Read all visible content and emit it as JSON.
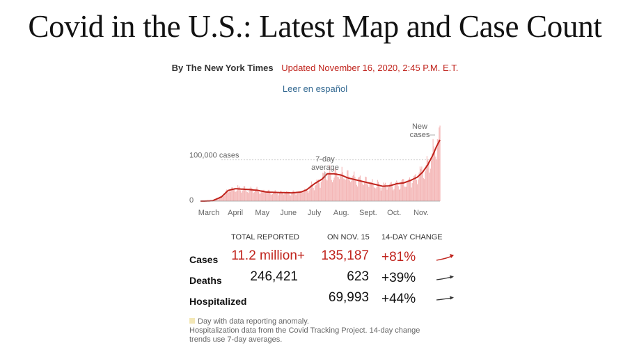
{
  "header": {
    "title": "Covid in the U.S.: Latest Map and Case Count",
    "byline": "By The New York Times",
    "updated": "Updated November 16, 2020, 2:45 P.M. E.T.",
    "language_link": "Leer en español"
  },
  "chart_data": {
    "type": "bar",
    "categories": [
      "March",
      "April",
      "May",
      "June",
      "July",
      "Aug.",
      "Sept.",
      "Oct.",
      "Nov."
    ],
    "ylim": [
      0,
      175000
    ],
    "gridline_label": "100,000 cases",
    "zero_label": "0",
    "annotations": {
      "average": "7-day average",
      "new_cases": "New cases"
    },
    "colors": {
      "bars": "#f4b6b6",
      "average_line": "#c0231c",
      "gridline": "#d0d0d0"
    },
    "series": [
      {
        "name": "New cases",
        "type": "bar"
      },
      {
        "name": "7-day average",
        "type": "line",
        "keypoints": [
          [
            0,
            0
          ],
          [
            6,
            100
          ],
          [
            14,
            1000
          ],
          [
            24,
            10000
          ],
          [
            32,
            26000
          ],
          [
            40,
            30000
          ],
          [
            48,
            29000
          ],
          [
            56,
            28000
          ],
          [
            66,
            26000
          ],
          [
            76,
            22000
          ],
          [
            86,
            21000
          ],
          [
            96,
            20500
          ],
          [
            106,
            20000
          ],
          [
            116,
            22000
          ],
          [
            122,
            27000
          ],
          [
            132,
            43000
          ],
          [
            140,
            53000
          ],
          [
            146,
            66000
          ],
          [
            154,
            66000
          ],
          [
            162,
            63000
          ],
          [
            170,
            56000
          ],
          [
            178,
            52000
          ],
          [
            186,
            48000
          ],
          [
            194,
            44000
          ],
          [
            202,
            40000
          ],
          [
            210,
            36000
          ],
          [
            218,
            37000
          ],
          [
            226,
            42000
          ],
          [
            234,
            44000
          ],
          [
            242,
            50000
          ],
          [
            250,
            58000
          ],
          [
            256,
            70000
          ],
          [
            262,
            88000
          ],
          [
            268,
            112000
          ],
          [
            272,
            132000
          ],
          [
            276,
            148000
          ]
        ]
      }
    ]
  },
  "summary_table": {
    "headers": {
      "total": "TOTAL REPORTED",
      "on_date": "ON NOV. 15",
      "change": "14-DAY CHANGE"
    },
    "rows": [
      {
        "label": "Cases",
        "total": "11.2 million+",
        "on_date": "135,187",
        "change": "+81%",
        "color": "#c0231c"
      },
      {
        "label": "Deaths",
        "total": "246,421",
        "on_date": "623",
        "change": "+39%",
        "color": "#121212"
      },
      {
        "label": "Hospitalized",
        "total": "",
        "on_date": "69,993",
        "change": "+44%",
        "color": "#121212"
      }
    ]
  },
  "footnotes": {
    "anomaly": "Day with data reporting anomaly.",
    "source": "Hospitalization data from the Covid Tracking Project. 14-day change trends use 7-day averages."
  }
}
